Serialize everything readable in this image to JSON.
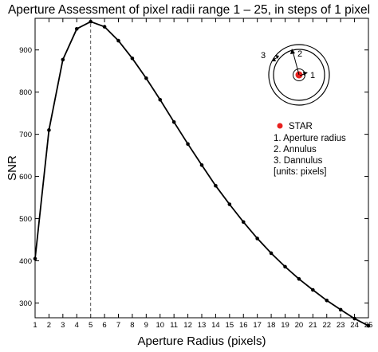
{
  "chart_data": {
    "type": "line",
    "title": "Aperture Assessment of pixel radii range 1 – 25, in steps of 1 pixel",
    "xlabel": "Aperture Radius (pixels)",
    "ylabel": "SNR",
    "xlim": [
      1,
      25
    ],
    "ylim": [
      265,
      975
    ],
    "x_ticks": [
      "1",
      "2",
      "3",
      "4",
      "5",
      "6",
      "7",
      "8",
      "9",
      "10",
      "11",
      "12",
      "13",
      "14",
      "15",
      "16",
      "17",
      "18",
      "19",
      "20",
      "21",
      "22",
      "23",
      "24",
      "25"
    ],
    "y_ticks": [
      "300",
      "400",
      "500",
      "600",
      "700",
      "800",
      "900"
    ],
    "series": [
      {
        "x": [
          1,
          2,
          3,
          4,
          5,
          6,
          7,
          8,
          9,
          10,
          11,
          12,
          13,
          14,
          15,
          16,
          17,
          18,
          19,
          20,
          21,
          22,
          23,
          24,
          25
        ],
        "values": [
          405,
          710,
          877,
          950,
          967,
          955,
          922,
          880,
          833,
          782,
          729,
          677,
          627,
          578,
          534,
          492,
          453,
          418,
          386,
          357,
          331,
          306,
          284,
          263,
          246
        ]
      }
    ],
    "vertical_marker_x": 5,
    "grid": false,
    "legend_position": "top-right",
    "legend": {
      "star": "STAR",
      "items": [
        "1. Aperture radius",
        "2. Annulus",
        "3. Dannulus",
        "[units: pixels]"
      ]
    },
    "diagram_labels": [
      "1",
      "2",
      "3"
    ],
    "colors": {
      "line": "#000000",
      "star": "#e8201e",
      "marker_line": "#555555"
    }
  }
}
